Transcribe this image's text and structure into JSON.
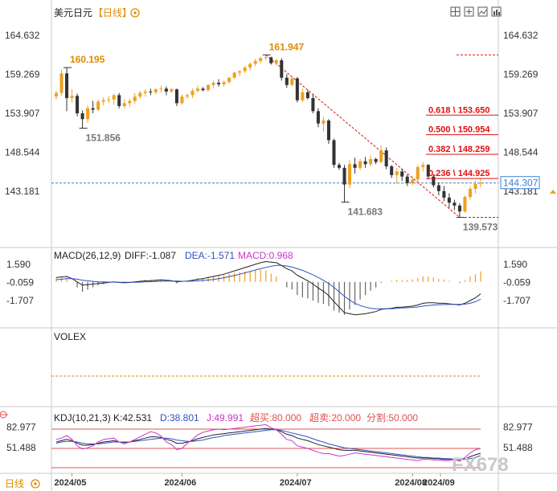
{
  "header": {
    "symbol": "美元日元",
    "period": "【日线】",
    "settings_icon": "gear-icon",
    "toolbar_icons": [
      "grid-icon",
      "crosshair-icon",
      "image-icon",
      "chart-icon"
    ]
  },
  "colors": {
    "up": "#f0a020",
    "down": "#333333",
    "fib": "#e01010",
    "price_line": "#3a7fd0",
    "magenta": "#cc33cc",
    "label_gray": "#777777",
    "label_orange": "#e08a00"
  },
  "chart_data": [
    {
      "type": "candlestick",
      "title": "美元日元 【日线】",
      "y_ticks": [
        "164.632",
        "159.269",
        "153.907",
        "148.544",
        "143.181"
      ],
      "ylim": [
        137.2,
        166.4
      ],
      "x_ticks": [
        "2024/05",
        "2024/06",
        "2024/07",
        "2024/08",
        "2024/09"
      ],
      "last_price": "144.307",
      "annotations": [
        {
          "label": "160.195",
          "value": 160.195,
          "date": "2024-04-29",
          "kind": "high"
        },
        {
          "label": "151.856",
          "value": 151.856,
          "date": "2024-05-03",
          "kind": "low"
        },
        {
          "label": "161.947",
          "value": 161.947,
          "date": "2024-07-03",
          "kind": "high"
        },
        {
          "label": "141.683",
          "value": 141.683,
          "date": "2024-08-05",
          "kind": "low"
        },
        {
          "label": "139.573",
          "value": 139.573,
          "date": "2024-09-16",
          "kind": "low"
        }
      ],
      "fibonacci": [
        {
          "label": "0.618 \\ 153.650",
          "value": 153.65
        },
        {
          "label": "0.500 \\ 150.954",
          "value": 150.954
        },
        {
          "label": "0.382 \\ 148.259",
          "value": 148.259
        },
        {
          "label": "0.236 \\ 144.925",
          "value": 144.925
        }
      ],
      "dashed_levels": [
        161.947,
        139.573
      ],
      "ohlc": [
        [
          156.2,
          157.0,
          155.8,
          156.7
        ],
        [
          156.7,
          159.9,
          156.3,
          159.4
        ],
        [
          159.4,
          160.195,
          154.2,
          156.0
        ],
        [
          156.0,
          157.2,
          155.4,
          156.3
        ],
        [
          156.3,
          156.6,
          153.5,
          153.9
        ],
        [
          153.9,
          154.3,
          151.856,
          153.1
        ],
        [
          153.1,
          155.0,
          152.6,
          154.6
        ],
        [
          154.6,
          155.6,
          153.9,
          154.4
        ],
        [
          154.4,
          155.8,
          154.2,
          155.5
        ],
        [
          155.5,
          156.1,
          155.0,
          155.7
        ],
        [
          155.7,
          156.3,
          155.3,
          155.8
        ],
        [
          155.8,
          156.6,
          155.1,
          156.4
        ],
        [
          156.4,
          156.7,
          154.6,
          154.9
        ],
        [
          154.9,
          155.8,
          154.6,
          155.3
        ],
        [
          155.3,
          155.9,
          154.8,
          155.6
        ],
        [
          155.6,
          156.7,
          155.2,
          156.2
        ],
        [
          156.2,
          157.0,
          155.9,
          156.7
        ],
        [
          156.7,
          157.2,
          156.2,
          156.9
        ],
        [
          156.9,
          157.3,
          156.4,
          156.8
        ],
        [
          156.8,
          157.4,
          156.5,
          157.2
        ],
        [
          157.2,
          157.7,
          156.8,
          157.3
        ],
        [
          157.3,
          157.6,
          156.4,
          156.9
        ],
        [
          156.9,
          157.4,
          156.7,
          157.2
        ],
        [
          157.2,
          157.3,
          154.9,
          155.3
        ],
        [
          155.3,
          156.5,
          155.1,
          156.2
        ],
        [
          156.2,
          156.6,
          155.9,
          156.4
        ],
        [
          156.4,
          157.3,
          156.0,
          157.0
        ],
        [
          157.0,
          157.7,
          156.8,
          157.3
        ],
        [
          157.3,
          157.5,
          156.9,
          157.1
        ],
        [
          157.1,
          157.9,
          156.9,
          157.8
        ],
        [
          157.8,
          158.4,
          157.4,
          158.1
        ],
        [
          158.1,
          158.6,
          157.6,
          157.9
        ],
        [
          157.9,
          158.4,
          157.6,
          158.2
        ],
        [
          158.2,
          158.9,
          158.0,
          158.8
        ],
        [
          158.8,
          159.6,
          158.6,
          159.5
        ],
        [
          159.5,
          159.8,
          159.0,
          159.7
        ],
        [
          159.7,
          160.4,
          159.5,
          160.2
        ],
        [
          160.2,
          160.9,
          159.8,
          160.7
        ],
        [
          160.7,
          161.4,
          160.4,
          161.1
        ],
        [
          161.1,
          161.7,
          160.8,
          161.5
        ],
        [
          161.5,
          161.947,
          161.2,
          161.6
        ],
        [
          161.6,
          161.7,
          160.6,
          160.8
        ],
        [
          160.8,
          161.4,
          160.5,
          161.2
        ],
        [
          161.2,
          161.5,
          158.4,
          158.8
        ],
        [
          158.8,
          159.3,
          157.4,
          157.8
        ],
        [
          157.8,
          158.9,
          157.6,
          158.7
        ],
        [
          158.7,
          158.9,
          155.4,
          155.7
        ],
        [
          155.7,
          157.3,
          155.4,
          156.8
        ],
        [
          156.8,
          157.1,
          155.8,
          156.0
        ],
        [
          156.0,
          156.5,
          153.9,
          154.2
        ],
        [
          154.2,
          154.6,
          152.0,
          152.5
        ],
        [
          152.5,
          153.4,
          151.4,
          152.9
        ],
        [
          152.9,
          153.1,
          149.7,
          150.2
        ],
        [
          150.2,
          150.4,
          146.4,
          146.8
        ],
        [
          146.8,
          147.1,
          146.1,
          146.4
        ],
        [
          146.4,
          146.8,
          141.683,
          144.1
        ],
        [
          144.1,
          147.5,
          143.6,
          146.9
        ],
        [
          146.9,
          147.8,
          145.6,
          146.4
        ],
        [
          146.4,
          147.6,
          146.1,
          147.3
        ],
        [
          147.3,
          147.9,
          146.4,
          146.9
        ],
        [
          146.9,
          148.1,
          146.6,
          147.6
        ],
        [
          147.6,
          147.8,
          146.9,
          147.2
        ],
        [
          147.2,
          149.5,
          147.0,
          148.8
        ],
        [
          148.8,
          149.2,
          146.2,
          146.6
        ],
        [
          146.6,
          146.8,
          145.0,
          145.4
        ],
        [
          145.4,
          146.4,
          144.2,
          145.9
        ],
        [
          145.9,
          146.2,
          144.6,
          145.2
        ],
        [
          145.2,
          145.5,
          143.9,
          144.3
        ],
        [
          144.3,
          145.2,
          144.0,
          144.8
        ],
        [
          144.8,
          146.8,
          144.4,
          146.5
        ],
        [
          146.5,
          147.2,
          145.9,
          146.8
        ],
        [
          146.8,
          146.9,
          144.8,
          145.2
        ],
        [
          145.2,
          145.5,
          143.7,
          144.0
        ],
        [
          144.0,
          144.4,
          142.6,
          143.2
        ],
        [
          143.2,
          143.9,
          141.8,
          142.3
        ],
        [
          142.3,
          142.9,
          140.9,
          141.6
        ],
        [
          141.6,
          142.0,
          140.6,
          141.2
        ],
        [
          141.2,
          141.5,
          139.573,
          140.4
        ],
        [
          140.4,
          142.6,
          140.2,
          142.4
        ],
        [
          142.4,
          143.9,
          142.0,
          143.5
        ],
        [
          143.5,
          144.6,
          142.9,
          144.2
        ],
        [
          144.2,
          144.9,
          143.7,
          144.307
        ]
      ]
    },
    {
      "type": "line",
      "title": "MACD(26,12,9)",
      "legend": [
        {
          "label": "DIFF:-1.087",
          "color": "#222222"
        },
        {
          "label": "DEA:-1.571",
          "color": "#3050c0"
        },
        {
          "label": "MACD:0.968",
          "color": "#cc33cc"
        }
      ],
      "y_ticks": [
        "1.590",
        "-0.059",
        "-1.707"
      ],
      "ylim": [
        -3.6,
        2.4
      ],
      "series": [
        {
          "name": "DIFF",
          "values": [
            0.4,
            0.45,
            0.5,
            0.3,
            0.0,
            -0.3,
            -0.25,
            -0.2,
            -0.15,
            -0.1,
            -0.05,
            0.0,
            -0.05,
            -0.08,
            -0.05,
            0.0,
            0.05,
            0.1,
            0.12,
            0.15,
            0.18,
            0.15,
            0.12,
            0.0,
            0.05,
            0.08,
            0.15,
            0.25,
            0.3,
            0.4,
            0.5,
            0.6,
            0.7,
            0.85,
            1.0,
            1.15,
            1.3,
            1.45,
            1.6,
            1.75,
            1.85,
            1.8,
            1.75,
            1.5,
            1.2,
            1.0,
            0.6,
            0.35,
            0.1,
            -0.2,
            -0.55,
            -0.85,
            -1.25,
            -1.8,
            -2.3,
            -2.8,
            -2.9,
            -3.0,
            -2.95,
            -2.9,
            -2.8,
            -2.7,
            -2.5,
            -2.45,
            -2.4,
            -2.3,
            -2.3,
            -2.25,
            -2.2,
            -2.1,
            -1.95,
            -1.9,
            -1.9,
            -1.95,
            -1.95,
            -2.0,
            -2.05,
            -2.1,
            -1.95,
            -1.7,
            -1.45,
            -1.087
          ]
        },
        {
          "name": "DEA",
          "values": [
            0.2,
            0.25,
            0.3,
            0.3,
            0.25,
            0.15,
            0.1,
            0.05,
            0.0,
            0.0,
            -0.02,
            -0.02,
            -0.03,
            -0.04,
            -0.04,
            -0.03,
            -0.02,
            0.0,
            0.02,
            0.04,
            0.06,
            0.08,
            0.08,
            0.07,
            0.06,
            0.06,
            0.08,
            0.1,
            0.13,
            0.17,
            0.22,
            0.3,
            0.38,
            0.48,
            0.58,
            0.7,
            0.82,
            0.95,
            1.08,
            1.2,
            1.32,
            1.42,
            1.5,
            1.5,
            1.45,
            1.35,
            1.2,
            1.05,
            0.85,
            0.65,
            0.4,
            0.15,
            -0.15,
            -0.5,
            -0.9,
            -1.3,
            -1.65,
            -1.95,
            -2.15,
            -2.3,
            -2.4,
            -2.45,
            -2.45,
            -2.45,
            -2.45,
            -2.4,
            -2.38,
            -2.35,
            -2.32,
            -2.28,
            -2.2,
            -2.15,
            -2.1,
            -2.08,
            -2.06,
            -2.05,
            -2.05,
            -2.05,
            -2.03,
            -1.95,
            -1.8,
            -1.571
          ]
        },
        {
          "name": "MACD",
          "values": [
            0.4,
            0.4,
            0.4,
            0.0,
            -0.5,
            -0.9,
            -0.7,
            -0.5,
            -0.3,
            -0.2,
            -0.06,
            0.04,
            -0.04,
            -0.08,
            -0.02,
            0.06,
            0.14,
            0.2,
            0.2,
            0.22,
            0.24,
            0.14,
            0.08,
            -0.14,
            -0.02,
            0.04,
            0.14,
            0.3,
            0.34,
            0.46,
            0.56,
            0.6,
            0.64,
            0.74,
            0.84,
            0.9,
            0.96,
            1.0,
            1.04,
            1.1,
            1.06,
            0.76,
            0.5,
            0.0,
            -0.5,
            -0.7,
            -1.2,
            -1.4,
            -1.5,
            -1.7,
            -1.9,
            -2.0,
            -2.2,
            -2.6,
            -2.8,
            -3.0,
            -2.5,
            -2.1,
            -1.6,
            -1.2,
            -0.8,
            -0.5,
            -0.1,
            0.0,
            0.1,
            0.2,
            0.16,
            0.2,
            0.24,
            0.36,
            0.5,
            0.5,
            0.4,
            0.26,
            0.22,
            0.1,
            0.0,
            -0.1,
            0.16,
            0.5,
            0.7,
            0.968
          ]
        }
      ]
    },
    {
      "type": "line",
      "title": "VOLEX",
      "series": []
    },
    {
      "type": "line",
      "title": "KDJ(10,21,3)",
      "legend": [
        {
          "label": "K:42.531",
          "color": "#222222"
        },
        {
          "label": "D:38.801",
          "color": "#3050c0"
        },
        {
          "label": "J:49.991",
          "color": "#cc33cc"
        },
        {
          "label": "超买:80.000",
          "color": "#e05050"
        },
        {
          "label": "超卖:20.000",
          "color": "#e05050"
        },
        {
          "label": "分割:50.000",
          "color": "#e05050"
        }
      ],
      "y_ticks": [
        "82.977",
        "51.488"
      ],
      "ylim": [
        15,
        95
      ],
      "levels": [
        80,
        50,
        20
      ],
      "series": [
        {
          "name": "K",
          "values": [
            60,
            62,
            64,
            62,
            58,
            55,
            55,
            56,
            58,
            60,
            61,
            62,
            60,
            59,
            60,
            62,
            64,
            66,
            68,
            68,
            67,
            64,
            62,
            58,
            58,
            60,
            62,
            65,
            67,
            69,
            71,
            72,
            73,
            74,
            75,
            76,
            77,
            78,
            79,
            80,
            81,
            80,
            79,
            76,
            72,
            70,
            66,
            64,
            62,
            59,
            56,
            54,
            52,
            50,
            48,
            47,
            47,
            47,
            46,
            45,
            44,
            43,
            42,
            41,
            40,
            39,
            38,
            37,
            36,
            35,
            35,
            35,
            34,
            34,
            33,
            33,
            33,
            32,
            34,
            37,
            40,
            42.531
          ]
        },
        {
          "name": "D",
          "values": [
            58,
            60,
            61,
            61,
            60,
            58,
            57,
            57,
            57,
            58,
            59,
            60,
            60,
            60,
            60,
            61,
            62,
            63,
            64,
            65,
            66,
            66,
            65,
            63,
            62,
            61,
            61,
            62,
            63,
            65,
            67,
            68,
            70,
            71,
            72,
            73,
            74,
            75,
            76,
            77,
            78,
            79,
            79,
            78,
            76,
            74,
            72,
            70,
            68,
            65,
            62,
            60,
            57,
            55,
            53,
            51,
            50,
            49,
            48,
            47,
            46,
            45,
            44,
            43,
            42,
            41,
            40,
            39,
            38,
            37,
            36,
            36,
            35,
            35,
            34,
            34,
            33,
            33,
            33,
            34,
            36,
            38.801
          ]
        },
        {
          "name": "J",
          "values": [
            64,
            66,
            70,
            64,
            54,
            49,
            51,
            54,
            60,
            64,
            65,
            66,
            60,
            57,
            60,
            64,
            68,
            72,
            76,
            74,
            69,
            60,
            56,
            48,
            50,
            58,
            64,
            71,
            75,
            77,
            79,
            80,
            79,
            80,
            81,
            82,
            83,
            84,
            85,
            86,
            87,
            82,
            79,
            72,
            64,
            62,
            54,
            52,
            50,
            47,
            44,
            42,
            42,
            40,
            38,
            39,
            41,
            43,
            42,
            41,
            40,
            39,
            38,
            37,
            36,
            35,
            34,
            33,
            32,
            31,
            33,
            33,
            32,
            32,
            31,
            31,
            33,
            30,
            36,
            43,
            48,
            49.991
          ]
        }
      ]
    }
  ],
  "watermark": "FX678",
  "footer_tab": "日线"
}
